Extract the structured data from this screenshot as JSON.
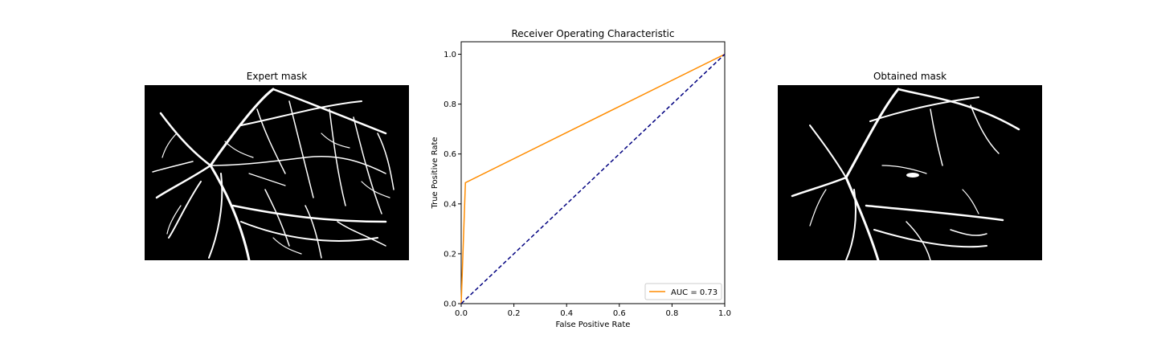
{
  "panels": {
    "left_title": "Expert mask",
    "right_title": "Obtained mask"
  },
  "chart_data": {
    "type": "line",
    "title": "Receiver Operating Characteristic",
    "xlabel": "False Positive Rate",
    "ylabel": "True Positive Rate",
    "xlim": [
      0.0,
      1.0
    ],
    "ylim": [
      0.0,
      1.05
    ],
    "xticks": [
      "0.0",
      "0.2",
      "0.4",
      "0.6",
      "0.8",
      "1.0"
    ],
    "yticks": [
      "0.0",
      "0.2",
      "0.4",
      "0.6",
      "0.8",
      "1.0"
    ],
    "grid": false,
    "legend_position": "lower right",
    "series": [
      {
        "name": "AUC = 0.73",
        "color": "#ff8c00",
        "style": "solid",
        "x": [
          0.0,
          0.016,
          1.0
        ],
        "y": [
          0.0,
          0.485,
          1.0
        ]
      },
      {
        "color": "#000080",
        "style": "dashed",
        "x": [
          0.0,
          1.0
        ],
        "y": [
          0.0,
          1.0
        ]
      }
    ]
  }
}
